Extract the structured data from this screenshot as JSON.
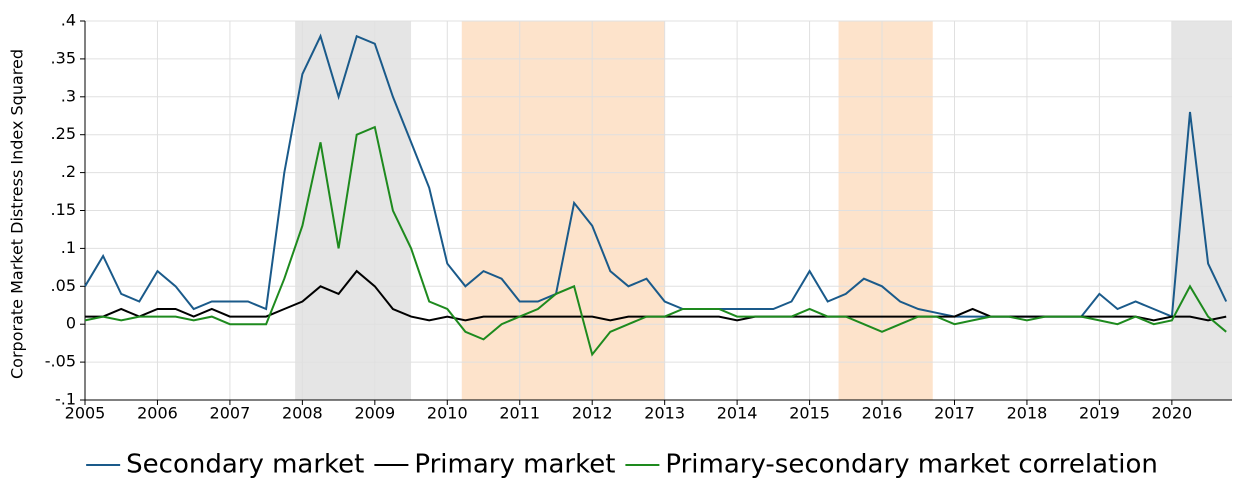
{
  "chart_data": {
    "type": "line",
    "y_label": "Corporate Market Distress Index Squared",
    "xlim": [
      2005,
      2020.83
    ],
    "ylim": [
      -0.1,
      0.4
    ],
    "xticks": [
      2005,
      2006,
      2007,
      2008,
      2009,
      2010,
      2011,
      2012,
      2013,
      2014,
      2015,
      2016,
      2017,
      2018,
      2019,
      2020
    ],
    "yticks": [
      {
        "value": -0.1,
        "label": "-.1"
      },
      {
        "value": -0.05,
        "label": "-.05"
      },
      0,
      {
        "value": 0.05,
        "label": ".05"
      },
      {
        "value": 0.1,
        "label": ".1"
      },
      {
        "value": 0.15,
        "label": ".15"
      },
      {
        "value": 0.2,
        "label": ".2"
      },
      {
        "value": 0.25,
        "label": ".25"
      },
      {
        "value": 0.3,
        "label": ".3"
      },
      {
        "value": 0.35,
        "label": ".35"
      },
      {
        "value": 0.4,
        "label": ".4"
      }
    ],
    "grid": true,
    "shaded_regions": [
      {
        "start": 2007.9,
        "end": 2009.5,
        "color": "#e5e5e5"
      },
      {
        "start": 2010.2,
        "end": 2013.0,
        "color": "#fde3cb"
      },
      {
        "start": 2015.4,
        "end": 2016.7,
        "color": "#fde3cb"
      },
      {
        "start": 2020.0,
        "end": 2020.83,
        "color": "#e5e5e5"
      }
    ],
    "x": [
      2005,
      2005.25,
      2005.5,
      2005.75,
      2006,
      2006.25,
      2006.5,
      2006.75,
      2007,
      2007.25,
      2007.5,
      2007.75,
      2008,
      2008.25,
      2008.5,
      2008.75,
      2009,
      2009.25,
      2009.5,
      2009.75,
      2010,
      2010.25,
      2010.5,
      2010.75,
      2011,
      2011.25,
      2011.5,
      2011.75,
      2012,
      2012.25,
      2012.5,
      2012.75,
      2013,
      2013.25,
      2013.5,
      2013.75,
      2014,
      2014.25,
      2014.5,
      2014.75,
      2015,
      2015.25,
      2015.5,
      2015.75,
      2016,
      2016.25,
      2016.5,
      2016.75,
      2017,
      2017.25,
      2017.5,
      2017.75,
      2018,
      2018.25,
      2018.5,
      2018.75,
      2019,
      2019.25,
      2019.5,
      2019.75,
      2020,
      2020.25,
      2020.5,
      2020.75
    ],
    "series": [
      {
        "name": "Secondary market",
        "color": "#1a5a8a",
        "values": [
          0.05,
          0.09,
          0.04,
          0.03,
          0.07,
          0.05,
          0.02,
          0.03,
          0.03,
          0.03,
          0.02,
          0.2,
          0.33,
          0.38,
          0.3,
          0.38,
          0.37,
          0.3,
          0.24,
          0.18,
          0.08,
          0.05,
          0.07,
          0.06,
          0.03,
          0.03,
          0.04,
          0.16,
          0.13,
          0.07,
          0.05,
          0.06,
          0.03,
          0.02,
          0.02,
          0.02,
          0.02,
          0.02,
          0.02,
          0.03,
          0.07,
          0.03,
          0.04,
          0.06,
          0.05,
          0.03,
          0.02,
          0.015,
          0.01,
          0.01,
          0.01,
          0.01,
          0.01,
          0.01,
          0.01,
          0.01,
          0.04,
          0.02,
          0.03,
          0.02,
          0.01,
          0.28,
          0.08,
          0.03
        ]
      },
      {
        "name": "Primary market",
        "color": "#000000",
        "values": [
          0.01,
          0.01,
          0.02,
          0.01,
          0.02,
          0.02,
          0.01,
          0.02,
          0.01,
          0.01,
          0.01,
          0.02,
          0.03,
          0.05,
          0.04,
          0.07,
          0.05,
          0.02,
          0.01,
          0.005,
          0.01,
          0.005,
          0.01,
          0.01,
          0.01,
          0.01,
          0.01,
          0.01,
          0.01,
          0.005,
          0.01,
          0.01,
          0.01,
          0.01,
          0.01,
          0.01,
          0.005,
          0.01,
          0.01,
          0.01,
          0.01,
          0.01,
          0.01,
          0.01,
          0.01,
          0.01,
          0.01,
          0.01,
          0.01,
          0.02,
          0.01,
          0.01,
          0.01,
          0.01,
          0.01,
          0.01,
          0.01,
          0.01,
          0.01,
          0.005,
          0.01,
          0.01,
          0.005,
          0.01
        ]
      },
      {
        "name": "Primary-secondary market correlation",
        "color": "#1e8a1e",
        "values": [
          0.005,
          0.01,
          0.005,
          0.01,
          0.01,
          0.01,
          0.005,
          0.01,
          0.0,
          0.0,
          0.0,
          0.06,
          0.13,
          0.24,
          0.1,
          0.25,
          0.26,
          0.15,
          0.1,
          0.03,
          0.02,
          -0.01,
          -0.02,
          0.0,
          0.01,
          0.02,
          0.04,
          0.05,
          -0.04,
          -0.01,
          0.0,
          0.01,
          0.01,
          0.02,
          0.02,
          0.02,
          0.01,
          0.01,
          0.01,
          0.01,
          0.02,
          0.01,
          0.01,
          0.0,
          -0.01,
          0.0,
          0.01,
          0.01,
          0.0,
          0.005,
          0.01,
          0.01,
          0.005,
          0.01,
          0.01,
          0.01,
          0.005,
          0.0,
          0.01,
          0.0,
          0.005,
          0.05,
          0.01,
          -0.01
        ]
      }
    ]
  }
}
